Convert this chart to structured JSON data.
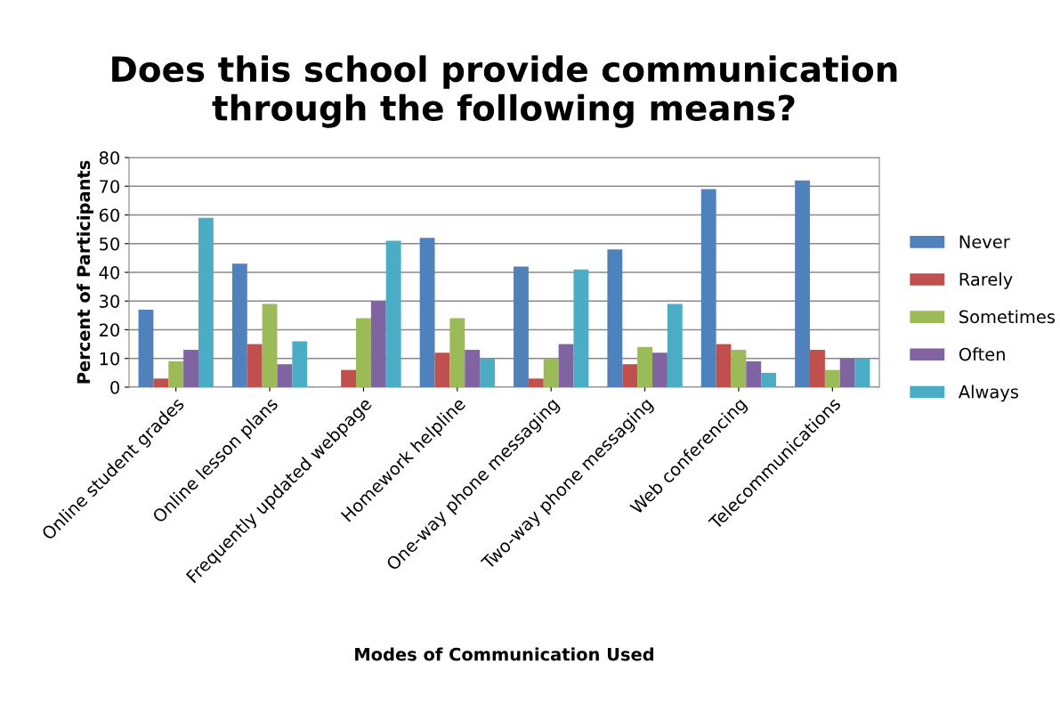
{
  "chart_data": {
    "type": "bar",
    "title": "Does this school provide communication\nthrough the following means?",
    "xlabel": "Modes of Communication Used",
    "ylabel": "Percent of Participants",
    "categories": [
      "Online student grades",
      "Online lesson plans",
      "Frequently updated webpage",
      "Homework helpline",
      "One-way phone messaging",
      "Two-way phone messaging",
      "Web conferencing",
      "Telecommunications"
    ],
    "series": [
      {
        "name": "Never",
        "color": "#4f81bd",
        "values": [
          27,
          43,
          0,
          52,
          42,
          48,
          69,
          72
        ]
      },
      {
        "name": "Rarely",
        "color": "#c0504d",
        "values": [
          3,
          15,
          6,
          12,
          3,
          8,
          15,
          13
        ]
      },
      {
        "name": "Sometimes",
        "color": "#9bbb59",
        "values": [
          9,
          29,
          24,
          24,
          10,
          14,
          13,
          6
        ]
      },
      {
        "name": "Often",
        "color": "#8064a2",
        "values": [
          13,
          8,
          30,
          13,
          15,
          12,
          9,
          10
        ]
      },
      {
        "name": "Always",
        "color": "#4bacc6",
        "values": [
          59,
          16,
          51,
          10,
          41,
          29,
          5,
          10
        ]
      }
    ],
    "ylim": [
      0,
      80
    ],
    "yticks": [
      0,
      10,
      20,
      30,
      40,
      50,
      60,
      70,
      80
    ],
    "grid": "y",
    "legend": "right"
  }
}
